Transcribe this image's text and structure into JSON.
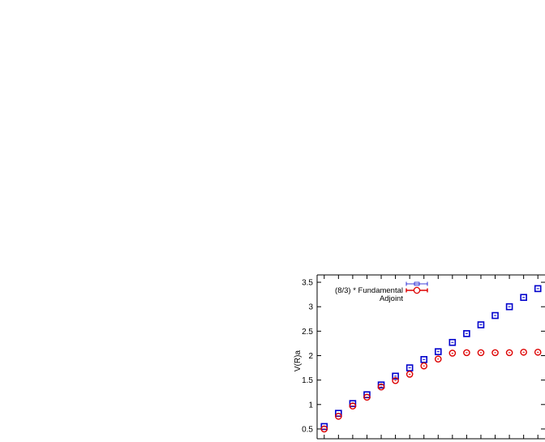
{
  "chart_data": {
    "type": "scatter",
    "title": "",
    "xlabel": "",
    "ylabel": "V(R)a",
    "ylim": [
      0.3,
      3.65
    ],
    "xlim": [
      0.5,
      16.5
    ],
    "yticks": [
      "0.5",
      "1",
      "1.5",
      "2",
      "2.5",
      "3",
      "3.5"
    ],
    "grid": false,
    "legend_position": "top-left",
    "series": [
      {
        "name": "(8/3) * Fundamental",
        "marker": "square",
        "color": "#0000cc",
        "x": [
          1,
          2,
          3,
          4,
          5,
          6,
          7,
          8,
          9,
          10,
          11,
          12,
          13,
          14,
          15,
          16
        ],
        "y": [
          0.55,
          0.82,
          1.02,
          1.2,
          1.4,
          1.58,
          1.75,
          1.92,
          2.08,
          2.27,
          2.45,
          2.63,
          2.82,
          3.0,
          3.19,
          3.37
        ]
      },
      {
        "name": "Adjoint",
        "marker": "circle",
        "color": "#dd0000",
        "x": [
          1,
          2,
          3,
          4,
          5,
          6,
          7,
          8,
          9,
          10,
          11,
          12,
          13,
          14,
          15,
          16
        ],
        "y": [
          0.5,
          0.76,
          0.97,
          1.15,
          1.36,
          1.49,
          1.62,
          1.79,
          1.93,
          2.05,
          2.06,
          2.06,
          2.06,
          2.06,
          2.07,
          2.07
        ]
      }
    ]
  }
}
